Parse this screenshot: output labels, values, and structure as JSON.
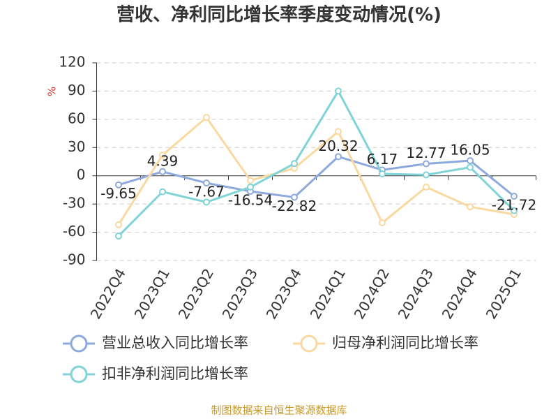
{
  "chart_data": {
    "type": "line",
    "title": "营收、净利同比增长率季度变动情况(%)",
    "y_unit": "%",
    "categories": [
      "2022Q4",
      "2023Q1",
      "2023Q2",
      "2023Q3",
      "2023Q4",
      "2024Q1",
      "2024Q2",
      "2024Q3",
      "2024Q4",
      "2025Q1"
    ],
    "series": [
      {
        "name": "营业总收入同比增长率",
        "color": "#8ea9dc",
        "values": [
          -9.65,
          4.39,
          -7.67,
          -16.54,
          -22.82,
          20.32,
          6.17,
          12.77,
          16.05,
          -21.72
        ],
        "show_labels": true
      },
      {
        "name": "归母净利润同比增长率",
        "color": "#fad9a1",
        "values": [
          -52,
          22,
          62,
          -5,
          8,
          47,
          -50,
          -12,
          -33,
          -41
        ],
        "show_labels": false
      },
      {
        "name": "扣非净利润同比增长率",
        "color": "#80d3d6",
        "values": [
          -64,
          -17,
          -28,
          -12,
          13,
          90,
          2,
          1,
          9,
          -37
        ],
        "show_labels": false
      }
    ],
    "ylim": [
      -90,
      120
    ],
    "yticks": [
      -90,
      -60,
      -30,
      0,
      30,
      60,
      90,
      120
    ],
    "grid": true,
    "legend": "bottom",
    "source": "制图数据来自恒生聚源数据库"
  }
}
